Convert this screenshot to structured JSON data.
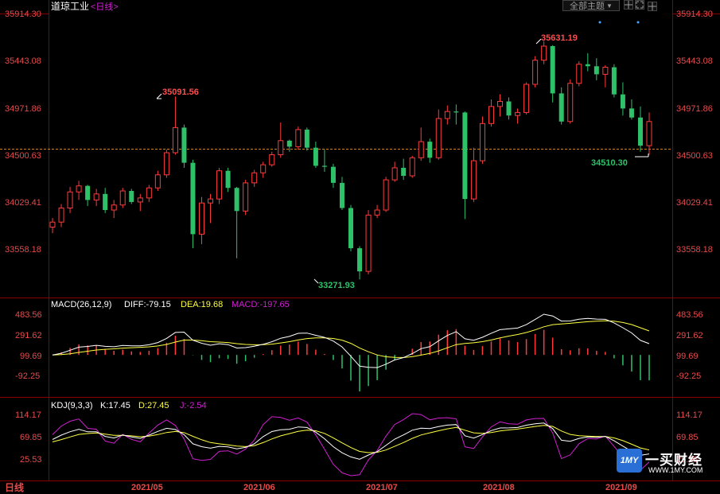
{
  "header": {
    "title": "道琼工业",
    "period": "<日线>",
    "theme_button": "全部主题",
    "theme_arrow": "▼"
  },
  "price_axis": {
    "ticks": [
      "35914.30",
      "35443.08",
      "34971.86",
      "34500.63",
      "34029.41",
      "33558.18"
    ],
    "reference_price": "34500.63"
  },
  "annotations": {
    "high_left": "35091.56",
    "high_right": "35631.19",
    "low": "33271.93",
    "last_low": "34510.30"
  },
  "macd": {
    "label": "MACD(26,12,9)",
    "diff_label": "DIFF:-79.15",
    "dea_label": "DEA:19.68",
    "macd_label": "MACD:-197.65",
    "ticks": [
      "483.56",
      "291.62",
      "99.69",
      "-92.25"
    ]
  },
  "kdj": {
    "label": "KDJ(9,3,3)",
    "k_label": "K:17.45",
    "d_label": "D:27.45",
    "j_label": "J:-2.54",
    "ticks": [
      "114.17",
      "69.85",
      "25.53"
    ]
  },
  "time_axis": {
    "labels": [
      "2021/05",
      "2021/06",
      "2021/07",
      "2021/08",
      "2021/09"
    ],
    "period_label": "日线"
  },
  "colors": {
    "up": "#ff3b3b",
    "down": "#2fc06a",
    "diff": "#ffffff",
    "dea": "#ffff40",
    "macd_text": "#d020d0",
    "j": "#d020d0",
    "axis_text": "#e84a4a",
    "grid": "#8a0000"
  },
  "logo": {
    "mark": "1MY",
    "name": "一买财经",
    "url": "WWW.1MY.COM"
  },
  "chart_data": {
    "type": "candlestick",
    "title": "道琼工业",
    "ylim": [
      33271.93,
      35914.3
    ],
    "candles": [
      [
        33790,
        33880,
        33730,
        33840
      ],
      [
        33840,
        34020,
        33790,
        33980
      ],
      [
        33980,
        34190,
        33930,
        34140
      ],
      [
        34140,
        34250,
        34060,
        34200
      ],
      [
        34200,
        34210,
        34000,
        34060
      ],
      [
        34060,
        34170,
        34000,
        34120
      ],
      [
        34120,
        34180,
        33930,
        33960
      ],
      [
        33960,
        34060,
        33880,
        34010
      ],
      [
        34010,
        34180,
        33980,
        34150
      ],
      [
        34150,
        34170,
        34020,
        34040
      ],
      [
        34040,
        34120,
        33950,
        34080
      ],
      [
        34080,
        34210,
        34040,
        34180
      ],
      [
        34180,
        34350,
        34150,
        34310
      ],
      [
        34310,
        34560,
        34280,
        34530
      ],
      [
        34530,
        35090,
        34510,
        34780
      ],
      [
        34780,
        34810,
        34380,
        34430
      ],
      [
        34430,
        34460,
        33580,
        33720
      ],
      [
        33720,
        34090,
        33620,
        34030
      ],
      [
        34030,
        34120,
        33830,
        34070
      ],
      [
        34070,
        34380,
        34020,
        34350
      ],
      [
        34350,
        34380,
        34140,
        34180
      ],
      [
        34180,
        34190,
        33480,
        33950
      ],
      [
        33950,
        34260,
        33910,
        34230
      ],
      [
        34230,
        34360,
        34190,
        34330
      ],
      [
        34330,
        34440,
        34280,
        34410
      ],
      [
        34410,
        34540,
        34390,
        34510
      ],
      [
        34510,
        34830,
        34480,
        34650
      ],
      [
        34650,
        34660,
        34540,
        34590
      ],
      [
        34590,
        34790,
        34560,
        34760
      ],
      [
        34760,
        34780,
        34550,
        34580
      ],
      [
        34580,
        34640,
        34380,
        34400
      ],
      [
        34400,
        34560,
        34340,
        34390
      ],
      [
        34390,
        34420,
        34180,
        34230
      ],
      [
        34230,
        34290,
        33960,
        33980
      ],
      [
        33980,
        34010,
        33550,
        33580
      ],
      [
        33580,
        33600,
        33270,
        33350
      ],
      [
        33350,
        33960,
        33320,
        33910
      ],
      [
        33910,
        34010,
        33880,
        33960
      ],
      [
        33960,
        34290,
        33940,
        34260
      ],
      [
        34260,
        34440,
        34240,
        34380
      ],
      [
        34380,
        34470,
        34260,
        34300
      ],
      [
        34300,
        34500,
        34280,
        34480
      ],
      [
        34480,
        34780,
        34450,
        34640
      ],
      [
        34640,
        34670,
        34430,
        34480
      ],
      [
        34480,
        34960,
        34460,
        34870
      ],
      [
        34870,
        35000,
        34810,
        34940
      ],
      [
        34940,
        35010,
        34810,
        34930
      ],
      [
        34930,
        34940,
        33870,
        34070
      ],
      [
        34070,
        34580,
        34040,
        34450
      ],
      [
        34450,
        34890,
        34420,
        34820
      ],
      [
        34820,
        35060,
        34790,
        34990
      ],
      [
        34990,
        35110,
        34890,
        35040
      ],
      [
        35040,
        35080,
        34860,
        34900
      ],
      [
        34900,
        34970,
        34820,
        34930
      ],
      [
        34930,
        35230,
        34910,
        35210
      ],
      [
        35210,
        35490,
        35180,
        35450
      ],
      [
        35450,
        35640,
        35410,
        35590
      ],
      [
        35590,
        35600,
        35030,
        35120
      ],
      [
        35120,
        35180,
        34810,
        34840
      ],
      [
        34840,
        35260,
        34820,
        35220
      ],
      [
        35220,
        35440,
        35190,
        35410
      ],
      [
        35410,
        35520,
        35340,
        35390
      ],
      [
        35390,
        35470,
        35250,
        35310
      ],
      [
        35310,
        35400,
        35180,
        35380
      ],
      [
        35380,
        35410,
        35080,
        35110
      ],
      [
        35110,
        35230,
        34900,
        34970
      ],
      [
        34970,
        35060,
        34860,
        34880
      ],
      [
        34880,
        34990,
        34540,
        34600
      ],
      [
        34600,
        34930,
        34510,
        34840
      ]
    ],
    "reference_price": 34500.63
  }
}
